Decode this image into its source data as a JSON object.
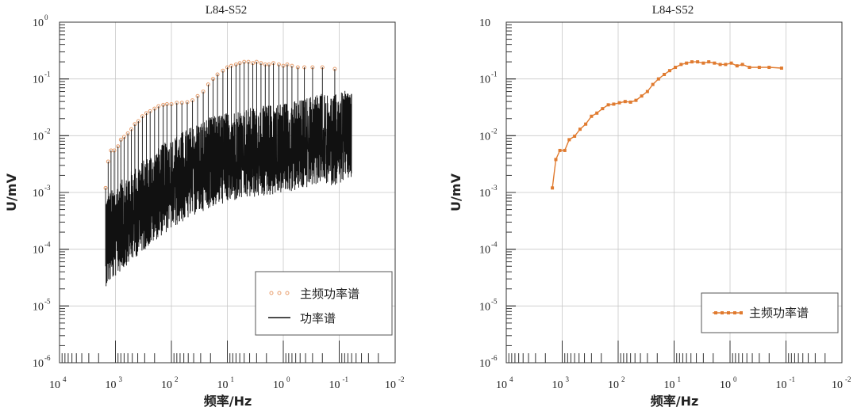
{
  "chart_data": [
    {
      "type": "line",
      "title": "L84-S52",
      "xlabel": "频率/Hz",
      "ylabel": "U/mV",
      "x_scale": "log",
      "y_scale": "log",
      "x_reversed": true,
      "xlim": [
        10000,
        0.01
      ],
      "ylim": [
        1e-06,
        1
      ],
      "x_ticks": [
        10000,
        1000,
        100,
        10,
        1,
        0.1,
        0.01
      ],
      "x_tick_labels": [
        {
          "base": "10",
          "exp": "4"
        },
        {
          "base": "10",
          "exp": "3"
        },
        {
          "base": "10",
          "exp": "2"
        },
        {
          "base": "10",
          "exp": "1"
        },
        {
          "base": "10",
          "exp": "0"
        },
        {
          "base": "10",
          "exp": "-1"
        },
        {
          "base": "10",
          "exp": "-2"
        }
      ],
      "y_ticks": [
        1,
        0.1,
        0.01,
        0.001,
        0.0001,
        1e-05,
        1e-06
      ],
      "y_tick_labels": [
        {
          "base": "10",
          "exp": "0"
        },
        {
          "base": "10",
          "exp": "-1"
        },
        {
          "base": "10",
          "exp": "-2"
        },
        {
          "base": "10",
          "exp": "-3"
        },
        {
          "base": "10",
          "exp": "-4"
        },
        {
          "base": "10",
          "exp": "-5"
        },
        {
          "base": "10",
          "exp": "-6"
        }
      ],
      "grid": true,
      "legend_position": "bottom-right",
      "series": [
        {
          "name": "主频功率谱",
          "style": "dots",
          "color": "#e8a070",
          "x": [
            1500,
            1350,
            1200,
            1050,
            900,
            800,
            700,
            600,
            520,
            450,
            390,
            330,
            280,
            240,
            200,
            170,
            140,
            120,
            100,
            80,
            65,
            52,
            42,
            34,
            27,
            22,
            18,
            15,
            12,
            10,
            8.5,
            7,
            6,
            5,
            4.2,
            3.5,
            3,
            2.5,
            2.1,
            1.8,
            1.5,
            1.2,
            1.0,
            0.85,
            0.7,
            0.55,
            0.42,
            0.3,
            0.2,
            0.12
          ],
          "y": [
            0.0012,
            0.0035,
            0.0055,
            0.0055,
            0.0065,
            0.0085,
            0.0095,
            0.011,
            0.013,
            0.016,
            0.018,
            0.022,
            0.025,
            0.027,
            0.03,
            0.033,
            0.035,
            0.036,
            0.036,
            0.038,
            0.038,
            0.039,
            0.042,
            0.05,
            0.06,
            0.08,
            0.1,
            0.12,
            0.14,
            0.16,
            0.17,
            0.18,
            0.19,
            0.2,
            0.2,
            0.19,
            0.2,
            0.19,
            0.18,
            0.18,
            0.19,
            0.18,
            0.17,
            0.18,
            0.17,
            0.16,
            0.16,
            0.16,
            0.16,
            0.15
          ]
        },
        {
          "name": "功率谱",
          "style": "line",
          "color": "#111111",
          "note_shape": "dense noisy spectrum; spikes reach the dotted peak envelope, baseline rises from ~1e-4 at 1500 Hz to ~8e-3 near 0.06 Hz",
          "baseline_x": [
            1500,
            1000,
            600,
            300,
            150,
            80,
            40,
            20,
            10,
            5,
            2,
            1,
            0.5,
            0.3,
            0.2,
            0.15,
            0.1,
            0.07,
            0.06
          ],
          "baseline_y": [
            0.0001,
            0.00015,
            0.00025,
            0.00045,
            0.0008,
            0.0012,
            0.0018,
            0.0025,
            0.003,
            0.0035,
            0.004,
            0.0045,
            0.005,
            0.006,
            0.007,
            0.006,
            0.0065,
            0.0075,
            0.008
          ]
        }
      ]
    },
    {
      "type": "line",
      "title": "L84-S52",
      "xlabel": "频率/Hz",
      "ylabel": "U/mV",
      "x_scale": "log",
      "y_scale": "log",
      "x_reversed": true,
      "xlim": [
        10000,
        0.01
      ],
      "ylim": [
        1e-06,
        1
      ],
      "x_ticks": [
        10000,
        1000,
        100,
        10,
        1,
        0.1,
        0.01
      ],
      "x_tick_labels": [
        {
          "base": "10",
          "exp": "4"
        },
        {
          "base": "10",
          "exp": "3"
        },
        {
          "base": "10",
          "exp": "2"
        },
        {
          "base": "10",
          "exp": "1"
        },
        {
          "base": "10",
          "exp": "0"
        },
        {
          "base": "10",
          "exp": "-1"
        },
        {
          "base": "10",
          "exp": "-2"
        }
      ],
      "y_ticks": [
        1,
        0.1,
        0.01,
        0.001,
        0.0001,
        1e-05,
        1e-06
      ],
      "y_tick_labels": [
        {
          "base": "10",
          "exp": ""
        },
        {
          "base": "10",
          "exp": "-1"
        },
        {
          "base": "10",
          "exp": "-2"
        },
        {
          "base": "10",
          "exp": "-3"
        },
        {
          "base": "10",
          "exp": "-4"
        },
        {
          "base": "10",
          "exp": "-5"
        },
        {
          "base": "10",
          "exp": "-6"
        }
      ],
      "grid": true,
      "legend_position": "bottom-right",
      "series": [
        {
          "name": "主频功率谱",
          "style": "line-markers",
          "color": "#e07b30",
          "x": [
            1500,
            1300,
            1100,
            900,
            750,
            600,
            480,
            380,
            300,
            240,
            190,
            150,
            120,
            95,
            75,
            60,
            48,
            38,
            30,
            24,
            19,
            15,
            12,
            9.5,
            7.5,
            6,
            4.8,
            3.8,
            3,
            2.4,
            1.9,
            1.5,
            1.2,
            0.95,
            0.75,
            0.6,
            0.45,
            0.3,
            0.2,
            0.12
          ],
          "y": [
            0.0012,
            0.0038,
            0.0055,
            0.0055,
            0.0085,
            0.0098,
            0.013,
            0.016,
            0.022,
            0.025,
            0.03,
            0.035,
            0.036,
            0.038,
            0.04,
            0.039,
            0.042,
            0.05,
            0.06,
            0.08,
            0.1,
            0.12,
            0.14,
            0.16,
            0.18,
            0.19,
            0.2,
            0.2,
            0.19,
            0.2,
            0.19,
            0.18,
            0.18,
            0.19,
            0.17,
            0.18,
            0.16,
            0.16,
            0.16,
            0.155
          ]
        }
      ]
    }
  ]
}
